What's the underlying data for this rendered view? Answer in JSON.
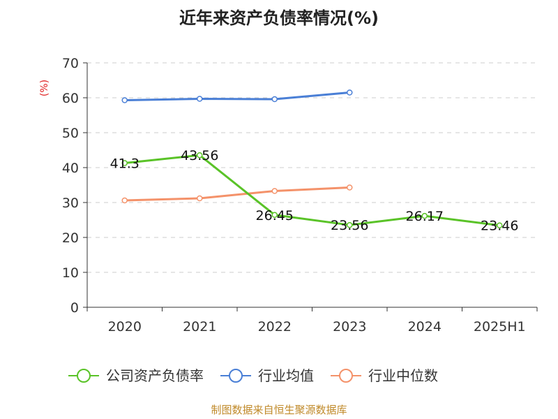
{
  "chart_data": {
    "type": "line",
    "title": "近年来资产负债率情况(%)",
    "ylabel": "(%)",
    "categories": [
      "2020",
      "2021",
      "2022",
      "2023",
      "2024",
      "2025H1"
    ],
    "ylim": [
      0,
      70
    ],
    "yticks": [
      0,
      10,
      20,
      30,
      40,
      50,
      60,
      70
    ],
    "grid": true,
    "legend_position": "bottom",
    "series": [
      {
        "name": "公司资产负债率",
        "color": "#5ac328",
        "values": [
          41.3,
          43.56,
          26.45,
          23.56,
          26.17,
          23.46
        ],
        "labels": [
          "41.3",
          "43.56",
          "26.45",
          "23.56",
          "26.17",
          "23.46"
        ]
      },
      {
        "name": "行业均值",
        "color": "#4a7fd6",
        "values": [
          59.3,
          59.7,
          59.6,
          61.5,
          null,
          null
        ]
      },
      {
        "name": "行业中位数",
        "color": "#f4926a",
        "values": [
          30.6,
          31.2,
          33.3,
          34.3,
          null,
          null
        ]
      }
    ]
  },
  "source": "制图数据来自恒生聚源数据库"
}
